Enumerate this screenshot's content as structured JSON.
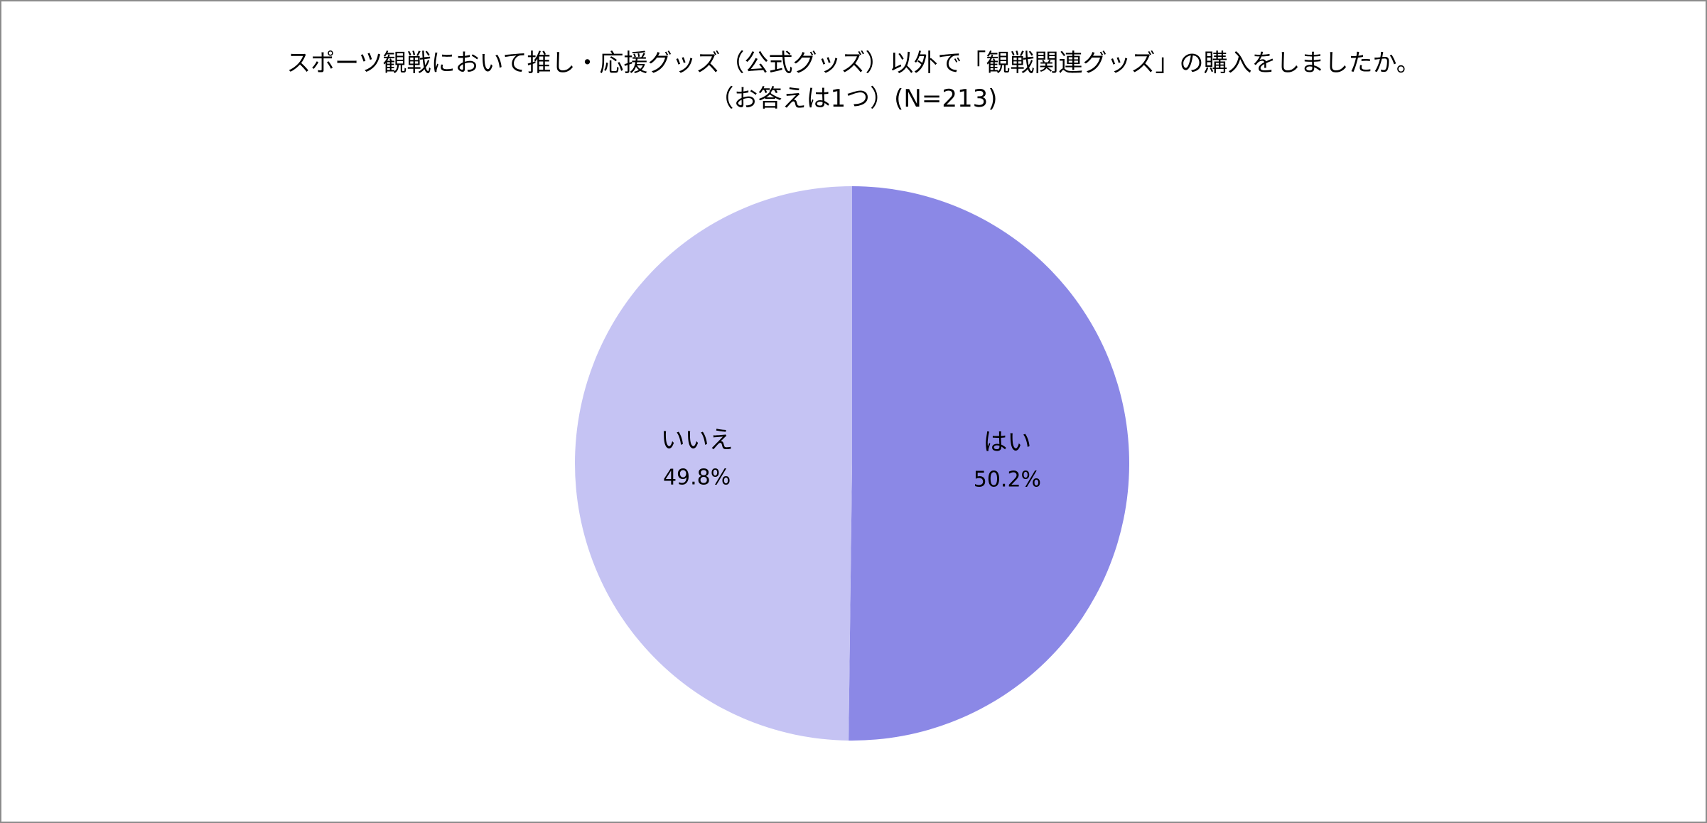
{
  "chart_data": {
    "type": "pie",
    "title": "スポーツ観戦において推し・応援グッズ（公式グッズ）以外で「観戦関連グッズ」の購入をしましたか。",
    "subtitle": "（お答えは1つ）(N=213)",
    "categories": [
      "はい",
      "いいえ"
    ],
    "values": [
      50.2,
      49.8
    ],
    "value_labels": [
      "50.2%",
      "49.8%"
    ],
    "colors": [
      "#8b88e6",
      "#c5c3f3"
    ],
    "start_angle": "12 o'clock",
    "direction": "clockwise",
    "legend": "none",
    "data_labels": "inside"
  }
}
